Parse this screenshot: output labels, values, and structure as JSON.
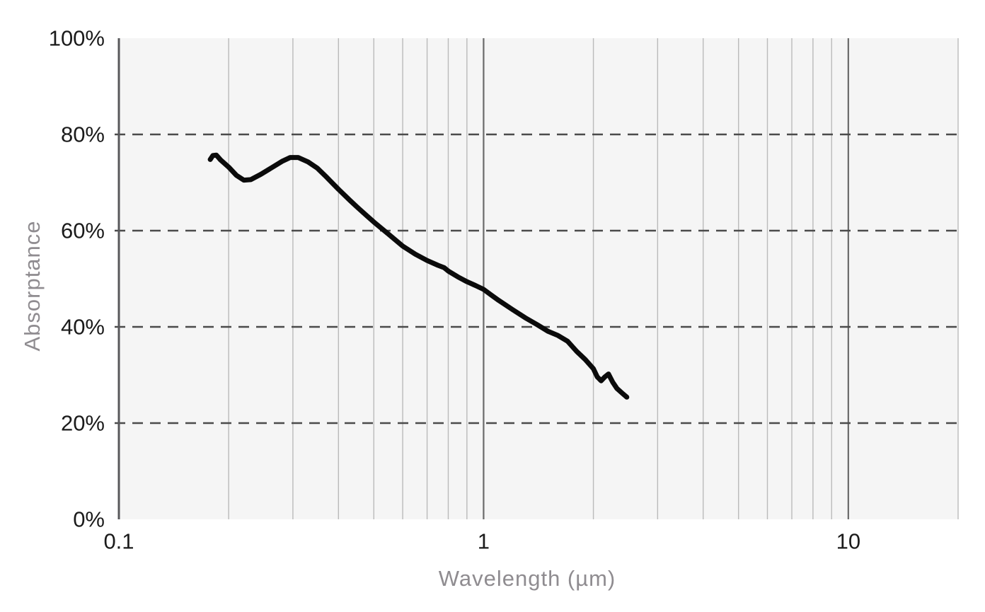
{
  "chart_data": {
    "type": "line",
    "title": "",
    "xlabel": "Wavelength (µm)",
    "ylabel": "Absorptance",
    "x_scale": "log",
    "x_range": [
      0.1,
      20
    ],
    "y_range": [
      0,
      100
    ],
    "grid": "on",
    "legend": "none",
    "x_ticks": [
      {
        "value": 0.1,
        "label": "0.1"
      },
      {
        "value": 1,
        "label": "1"
      },
      {
        "value": 10,
        "label": "10"
      }
    ],
    "y_ticks": [
      {
        "value": 0,
        "label": "0%"
      },
      {
        "value": 20,
        "label": "20%"
      },
      {
        "value": 40,
        "label": "40%"
      },
      {
        "value": 60,
        "label": "60%"
      },
      {
        "value": 80,
        "label": "80%"
      },
      {
        "value": 100,
        "label": "100%"
      }
    ],
    "x_minor_gridlines": [
      0.2,
      0.3,
      0.4,
      0.5,
      0.6,
      0.7,
      0.8,
      0.9,
      2,
      3,
      4,
      5,
      6,
      7,
      8,
      9,
      20
    ],
    "x_major_gridlines": [
      1,
      10
    ],
    "y_dashed_gridlines": [
      20,
      40,
      60,
      80
    ],
    "series": [
      {
        "name": "absorptance-vs-wavelength",
        "color": "#0b0b0b",
        "points": [
          [
            0.178,
            74.8
          ],
          [
            0.181,
            75.6
          ],
          [
            0.185,
            75.7
          ],
          [
            0.19,
            74.7
          ],
          [
            0.2,
            73.2
          ],
          [
            0.21,
            71.5
          ],
          [
            0.22,
            70.5
          ],
          [
            0.23,
            70.6
          ],
          [
            0.245,
            71.7
          ],
          [
            0.26,
            72.9
          ],
          [
            0.28,
            74.4
          ],
          [
            0.295,
            75.2
          ],
          [
            0.31,
            75.2
          ],
          [
            0.33,
            74.3
          ],
          [
            0.35,
            73.0
          ],
          [
            0.37,
            71.2
          ],
          [
            0.4,
            68.6
          ],
          [
            0.43,
            66.3
          ],
          [
            0.45,
            64.9
          ],
          [
            0.48,
            63.0
          ],
          [
            0.5,
            61.8
          ],
          [
            0.55,
            59.2
          ],
          [
            0.6,
            56.8
          ],
          [
            0.65,
            55.1
          ],
          [
            0.7,
            53.8
          ],
          [
            0.75,
            52.8
          ],
          [
            0.78,
            52.3
          ],
          [
            0.8,
            51.6
          ],
          [
            0.85,
            50.4
          ],
          [
            0.9,
            49.4
          ],
          [
            0.95,
            48.6
          ],
          [
            1.0,
            47.8
          ],
          [
            1.05,
            46.6
          ],
          [
            1.1,
            45.5
          ],
          [
            1.2,
            43.6
          ],
          [
            1.3,
            41.9
          ],
          [
            1.4,
            40.5
          ],
          [
            1.5,
            39.1
          ],
          [
            1.6,
            38.2
          ],
          [
            1.7,
            37.0
          ],
          [
            1.8,
            34.9
          ],
          [
            1.9,
            33.2
          ],
          [
            2.0,
            31.3
          ],
          [
            2.05,
            29.6
          ],
          [
            2.1,
            28.8
          ],
          [
            2.15,
            29.6
          ],
          [
            2.2,
            30.2
          ],
          [
            2.26,
            28.5
          ],
          [
            2.32,
            27.2
          ],
          [
            2.4,
            26.2
          ],
          [
            2.47,
            25.4
          ]
        ]
      }
    ]
  },
  "colors": {
    "page_bg": "#ffffff",
    "plot_bg": "#f5f5f5",
    "minor_grid": "#bababa",
    "major_grid": "#6a6a6a",
    "axis_line": "#58585b",
    "dashed_grid": "#4b4b4b",
    "curve": "#0b0b0b",
    "tick_label": "#1b1b1b",
    "axis_title": "#8f8c90"
  }
}
